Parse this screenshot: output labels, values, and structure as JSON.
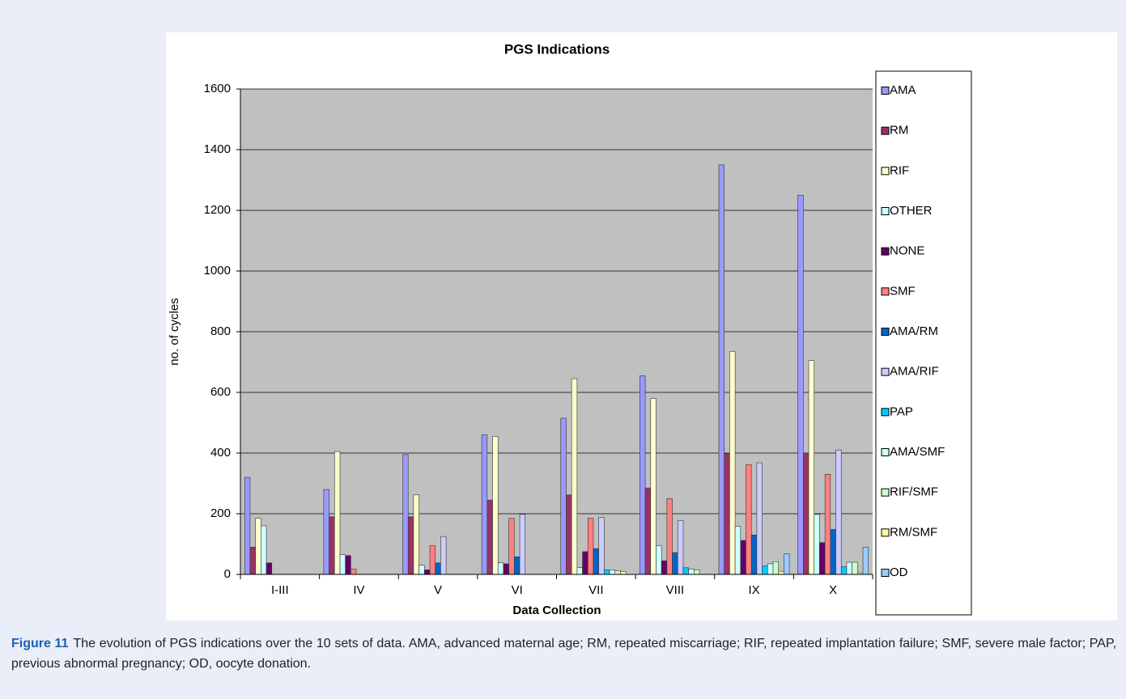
{
  "chart_data": {
    "type": "bar",
    "title": "PGS Indications",
    "xlabel": "Data Collection",
    "ylabel": "no. of cycles",
    "categories": [
      "I-III",
      "IV",
      "V",
      "VI",
      "VII",
      "VIII",
      "IX",
      "X"
    ],
    "ylim": [
      0,
      1600
    ],
    "yticks": [
      0,
      200,
      400,
      600,
      800,
      1000,
      1200,
      1400,
      1600
    ],
    "grid": true,
    "legend": "right",
    "series": [
      {
        "name": "AMA",
        "color": "#9999ff",
        "values": [
          320,
          280,
          395,
          460,
          515,
          655,
          1350,
          1250
        ]
      },
      {
        "name": "RM",
        "color": "#993366",
        "values": [
          90,
          190,
          190,
          245,
          262,
          285,
          398,
          400
        ]
      },
      {
        "name": "RIF",
        "color": "#ffffcc",
        "values": [
          185,
          405,
          262,
          455,
          645,
          580,
          735,
          705
        ]
      },
      {
        "name": "OTHER",
        "color": "#ccffff",
        "values": [
          160,
          65,
          30,
          38,
          22,
          95,
          158,
          198
        ]
      },
      {
        "name": "NONE",
        "color": "#660066",
        "values": [
          38,
          62,
          15,
          35,
          75,
          45,
          112,
          105
        ]
      },
      {
        "name": "SMF",
        "color": "#ff8080",
        "values": [
          0,
          18,
          95,
          185,
          185,
          250,
          362,
          330
        ]
      },
      {
        "name": "AMA/RM",
        "color": "#0066cc",
        "values": [
          0,
          0,
          38,
          58,
          85,
          72,
          130,
          148
        ]
      },
      {
        "name": "AMA/RIF",
        "color": "#ccccff",
        "values": [
          0,
          0,
          125,
          198,
          188,
          178,
          368,
          410
        ]
      },
      {
        "name": "PAP",
        "color": "#00ccff",
        "values": [
          0,
          0,
          0,
          0,
          15,
          22,
          28,
          25
        ]
      },
      {
        "name": "AMA/SMF",
        "color": "#ccffff",
        "values": [
          0,
          0,
          0,
          0,
          15,
          18,
          35,
          40
        ]
      },
      {
        "name": "RIF/SMF",
        "color": "#ccffcc",
        "values": [
          0,
          0,
          0,
          0,
          12,
          15,
          42,
          40
        ]
      },
      {
        "name": "RM/SMF",
        "color": "#ffff99",
        "values": [
          0,
          0,
          0,
          0,
          10,
          0,
          10,
          5
        ]
      },
      {
        "name": "OD",
        "color": "#99ccff",
        "values": [
          0,
          0,
          0,
          0,
          0,
          0,
          68,
          90
        ]
      }
    ],
    "caption": {
      "label": "Figure 11",
      "text": "The evolution of PGS indications over the 10 sets of data. AMA, advanced maternal age; RM, repeated miscarriage; RIF, repeated implantation failure; SMF, severe male factor; PAP, previous abnormal pregnancy; OD, oocyte donation."
    }
  }
}
